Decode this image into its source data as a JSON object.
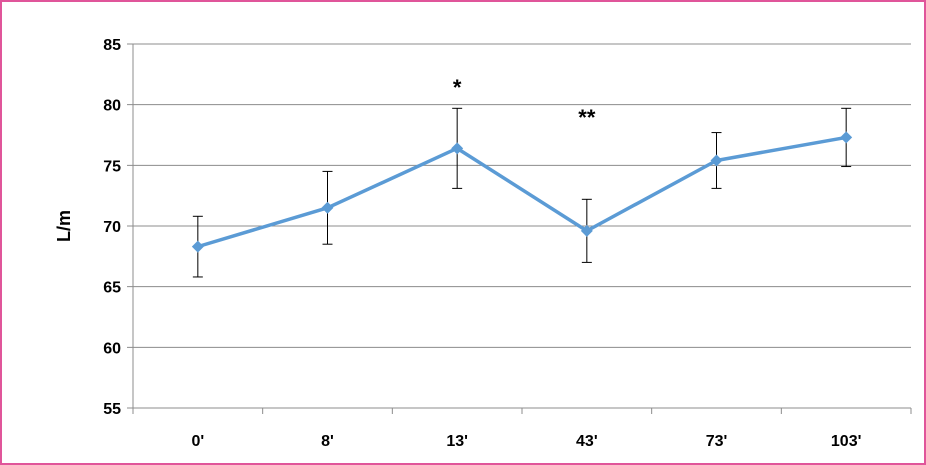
{
  "chart_data": {
    "type": "line",
    "categories": [
      "0'",
      "8'",
      "13'",
      "43'",
      "73'",
      "103'"
    ],
    "series": [
      {
        "values": [
          68.3,
          71.5,
          76.4,
          69.6,
          75.4,
          77.3
        ],
        "error": [
          2.5,
          3.0,
          3.3,
          2.6,
          2.3,
          2.4
        ],
        "color": "#5b9bd5"
      }
    ],
    "ylabel": "L/m",
    "ylim": [
      55,
      85
    ],
    "yticks": [
      55,
      60,
      65,
      70,
      75,
      80,
      85
    ],
    "grid": true,
    "annotations": [
      {
        "text": "*",
        "category": "13'",
        "y": 81.8
      },
      {
        "text": "**",
        "category": "43'",
        "y": 79.3
      }
    ]
  },
  "colors": {
    "frame": "#e0559a",
    "gridline": "#8c8c8c",
    "series": "#5b9bd5"
  }
}
